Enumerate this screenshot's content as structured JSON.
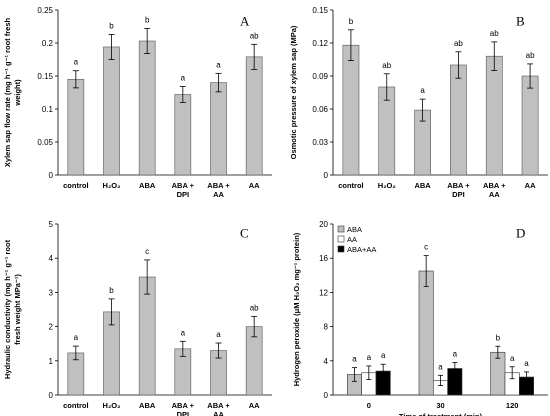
{
  "chart_data": [
    {
      "type": "bar",
      "panel_label": "A",
      "ylabel_lines": [
        "Xylem sap flow rate (mg h⁻¹ g⁻¹ root fresh",
        "weight)"
      ],
      "ylim": [
        0,
        0.25
      ],
      "yticks": [
        "0",
        "0.05",
        "0.1",
        "0.15",
        "0.2",
        "0.25"
      ],
      "categories": [
        [
          "control"
        ],
        [
          "H₂O₂"
        ],
        [
          "ABA"
        ],
        [
          "ABA +",
          "DPI"
        ],
        [
          "ABA +",
          "AA"
        ],
        [
          "AA"
        ]
      ],
      "values": [
        0.145,
        0.194,
        0.203,
        0.122,
        0.14,
        0.179
      ],
      "errors": [
        0.013,
        0.019,
        0.019,
        0.012,
        0.014,
        0.019
      ],
      "letters": [
        "a",
        "b",
        "b",
        "a",
        "a",
        "ab"
      ],
      "bar_color": "#c0c0c0"
    },
    {
      "type": "bar",
      "panel_label": "B",
      "ylabel_lines": [
        "Osmotic pressure of xylem sap (MPa)"
      ],
      "ylim": [
        0,
        0.15
      ],
      "yticks": [
        "0",
        "0.03",
        "0.06",
        "0.09",
        "0.12",
        "0.15"
      ],
      "categories": [
        [
          "control"
        ],
        [
          "H₂O₂"
        ],
        [
          "ABA"
        ],
        [
          "ABA +",
          "DPI"
        ],
        [
          "ABA +",
          "AA"
        ],
        [
          "AA"
        ]
      ],
      "values": [
        0.118,
        0.08,
        0.059,
        0.1,
        0.108,
        0.09
      ],
      "errors": [
        0.014,
        0.012,
        0.01,
        0.012,
        0.013,
        0.011
      ],
      "letters": [
        "b",
        "ab",
        "a",
        "ab",
        "ab",
        "ab"
      ],
      "bar_color": "#c0c0c0"
    },
    {
      "type": "bar",
      "panel_label": "C",
      "ylabel_lines": [
        "Hydraulic conductivity (mg h⁻¹ g⁻¹ root",
        "fresh weight MPa⁻¹)"
      ],
      "ylim": [
        0,
        5
      ],
      "yticks": [
        "0",
        "1",
        "2",
        "3",
        "4",
        "5"
      ],
      "categories": [
        [
          "control"
        ],
        [
          "H₂O₂"
        ],
        [
          "ABA"
        ],
        [
          "ABA +",
          "DPI"
        ],
        [
          "ABA +",
          "AA"
        ],
        [
          "AA"
        ]
      ],
      "values": [
        1.23,
        2.43,
        3.45,
        1.35,
        1.3,
        2.0
      ],
      "errors": [
        0.2,
        0.38,
        0.5,
        0.22,
        0.22,
        0.3
      ],
      "letters": [
        "a",
        "b",
        "c",
        "a",
        "a",
        "ab"
      ],
      "bar_color": "#c0c0c0"
    },
    {
      "type": "bar",
      "panel_label": "D",
      "ylabel_lines": [
        "Hydrogen peroxide (μM H₂O₂ mg⁻¹ protein)"
      ],
      "xlabel": "Time of treatment (min)",
      "ylim": [
        0,
        20
      ],
      "yticks": [
        "0",
        "4",
        "8",
        "12",
        "16",
        "20"
      ],
      "categories": [
        "0",
        "30",
        "120"
      ],
      "series": [
        {
          "name": "ABA",
          "values": [
            2.4,
            14.5,
            5.0
          ],
          "errors": [
            0.8,
            1.8,
            0.7
          ],
          "letters": [
            "a",
            "c",
            "b"
          ],
          "color": "#c0c0c0"
        },
        {
          "name": "AA",
          "values": [
            2.6,
            1.7,
            2.6
          ],
          "errors": [
            0.8,
            0.6,
            0.7
          ],
          "letters": [
            "a",
            "a",
            "a"
          ],
          "color": "#ffffff"
        },
        {
          "name": "ABA+AA",
          "values": [
            2.8,
            3.1,
            2.1
          ],
          "errors": [
            0.8,
            0.7,
            0.6
          ],
          "letters": [
            "a",
            "a",
            "a"
          ],
          "color": "#000000"
        }
      ],
      "legend_position": "top-left"
    }
  ]
}
